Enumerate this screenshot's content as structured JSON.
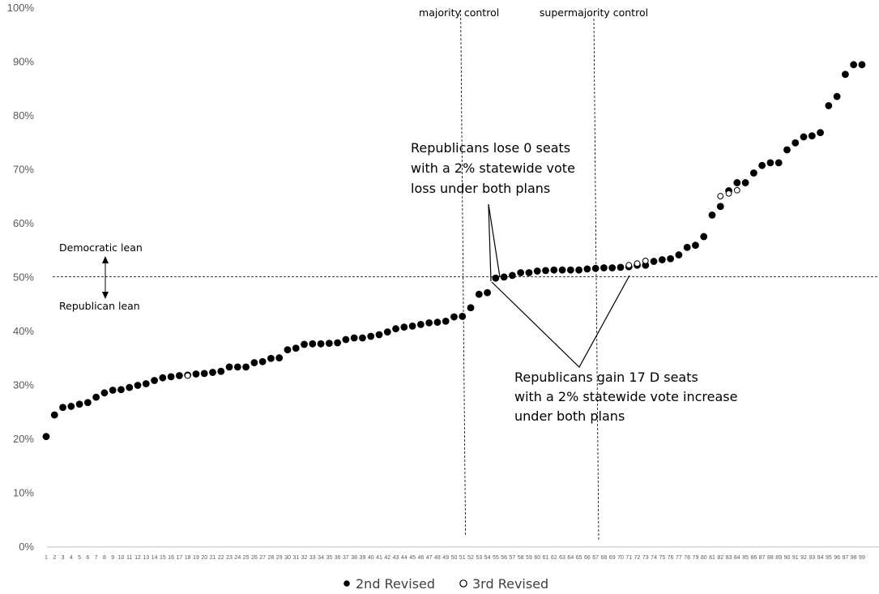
{
  "chart_data": {
    "type": "scatter",
    "x_categories_start": 1,
    "x_categories_end": 99,
    "ylim": [
      0,
      100
    ],
    "yticks": [
      "0%",
      "10%",
      "20%",
      "30%",
      "40%",
      "50%",
      "60%",
      "70%",
      "80%",
      "90%",
      "100%"
    ],
    "grid": false,
    "legend_position": "bottom",
    "reference_lines": {
      "horizontal": {
        "y": 50
      },
      "vertical": [
        {
          "x": 50.5,
          "label": "majority control"
        },
        {
          "x": 66.5,
          "label": "supermajority control"
        }
      ]
    },
    "lean_labels": {
      "up": "Democratic lean",
      "down": "Republican lean"
    },
    "annotations": [
      {
        "lines": [
          "Republicans lose 0 seats",
          "with a 2% statewide vote",
          "loss under both plans"
        ],
        "points_to": [
          53,
          54
        ]
      },
      {
        "lines": [
          "Republicans gain 17 D seats",
          "with a 2% statewide vote increase",
          "under both plans"
        ],
        "points_to": [
          54.5,
          70.5
        ]
      }
    ],
    "series": [
      {
        "name": "2nd Revised",
        "marker": "filled",
        "color": "#000000",
        "values": [
          20.5,
          24.5,
          25.9,
          26.1,
          26.5,
          26.8,
          27.8,
          28.6,
          29.1,
          29.2,
          29.6,
          30.0,
          30.3,
          30.9,
          31.4,
          31.6,
          31.8,
          31.9,
          32.1,
          32.2,
          32.4,
          32.6,
          33.4,
          33.4,
          33.4,
          34.2,
          34.4,
          35.0,
          35.1,
          36.6,
          36.9,
          37.6,
          37.7,
          37.7,
          37.8,
          37.9,
          38.5,
          38.8,
          38.8,
          39.1,
          39.4,
          39.9,
          40.5,
          40.8,
          41.0,
          41.3,
          41.6,
          41.7,
          41.9,
          42.7,
          42.8,
          44.4,
          46.9,
          47.2,
          49.9,
          50.1,
          50.4,
          50.9,
          50.9,
          51.2,
          51.3,
          51.4,
          51.4,
          51.4,
          51.4,
          51.6,
          51.7,
          51.8,
          51.8,
          51.9,
          52.0,
          52.3,
          52.3,
          53.0,
          53.3,
          53.5,
          54.2,
          55.6,
          56.0,
          57.6,
          61.6,
          63.2,
          66.1,
          67.6,
          67.6,
          69.4,
          70.8,
          71.3,
          71.3,
          73.7,
          75.0,
          76.1,
          76.3,
          76.9,
          81.9,
          83.6,
          87.7,
          89.5,
          89.5
        ]
      },
      {
        "name": "3rd Revised",
        "marker": "hollow",
        "color": "#000000",
        "values": [
          null,
          null,
          null,
          null,
          null,
          null,
          null,
          null,
          null,
          null,
          null,
          null,
          null,
          null,
          null,
          null,
          null,
          31.8,
          null,
          null,
          null,
          null,
          null,
          null,
          null,
          null,
          null,
          null,
          null,
          null,
          null,
          null,
          null,
          null,
          null,
          null,
          null,
          null,
          null,
          null,
          null,
          null,
          null,
          null,
          null,
          null,
          null,
          null,
          null,
          null,
          null,
          null,
          null,
          null,
          null,
          null,
          null,
          null,
          null,
          null,
          null,
          null,
          null,
          null,
          null,
          null,
          null,
          null,
          null,
          null,
          52.3,
          52.6,
          53.1,
          null,
          null,
          null,
          null,
          null,
          null,
          null,
          null,
          65.1,
          65.6,
          66.2,
          null,
          null,
          null,
          null,
          null,
          null,
          null,
          null,
          null,
          null,
          null,
          null,
          null,
          null,
          null
        ]
      }
    ]
  }
}
